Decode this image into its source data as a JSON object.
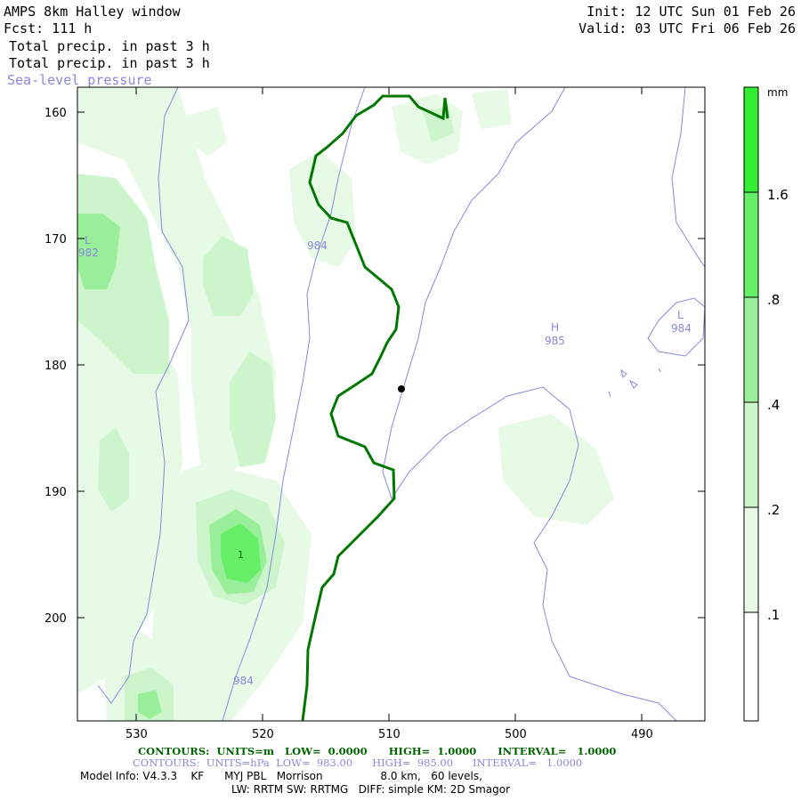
{
  "header": {
    "title": "AMPS 8km Halley window",
    "fcst": "Fcst: 111 h",
    "field1": "Total precip. in past 3 h",
    "field2": "Total precip. in past 3 h",
    "field3": "Sea-level pressure",
    "init": "Init: 12 UTC Sun 01 Feb 26",
    "valid": "Valid: 03 UTC Fri 06 Feb 26"
  },
  "axes": {
    "x_ticks": [
      "530",
      "520",
      "510",
      "500",
      "490"
    ],
    "y_ticks": [
      "160",
      "170",
      "180",
      "190",
      "200"
    ]
  },
  "colorbar": {
    "unit": "mm",
    "labels": [
      "1.6",
      ".8",
      ".4",
      ".2",
      ".1"
    ],
    "colors": [
      "#33ee33",
      "#66ee66",
      "#99ee99",
      "#ccf5cc",
      "#e6fae6",
      "#ffffff"
    ]
  },
  "map_labels": {
    "low_left_letter": "L",
    "low_left_value": "982",
    "high_letter": "H",
    "high_value": "985",
    "low_right_letter": "L",
    "low_right_value": "984",
    "isobar_label_top": "984",
    "isobar_label_bottom": "984",
    "max_marker": "1"
  },
  "footer": {
    "contours_green": "CONTOURS:  UNITS=m   LOW=  0.0000      HIGH=  1.0000      INTERVAL=   1.0000",
    "contours_blue": "CONTOURS:  UNITS=hPa  LOW=  983.00      HIGH=  985.00      INTERVAL=   1.0000",
    "model_info": "Model Info: V4.3.3    KF      MYJ PBL   Morrison                 8.0 km,   60 levels,",
    "physics": "LW: RRTM SW: RRTMG   DIFF: simple KM: 2D Smagor"
  },
  "style": {
    "precip_light": "#e6fae6",
    "precip_2": "#ccf5cc",
    "precip_3": "#99ee99",
    "precip_4": "#66ee66",
    "precip_5": "#33ee33",
    "isobar_color": "#8888dd",
    "terrain_color": "#007700"
  }
}
